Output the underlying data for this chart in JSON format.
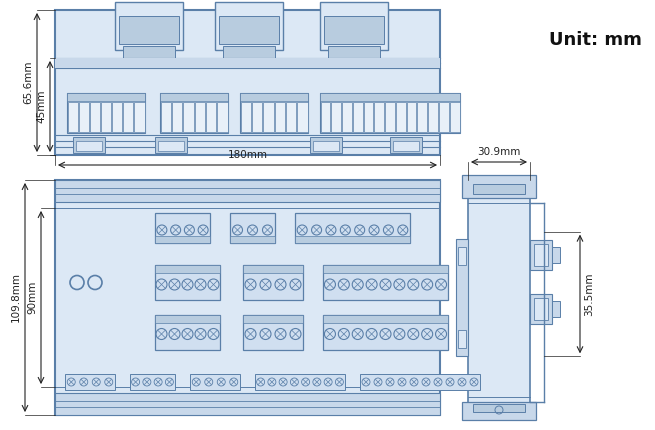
{
  "unit_text": "Unit: mm",
  "bg_color": "#ffffff",
  "line_color": "#5a7fa8",
  "fill_color": "#dce8f5",
  "fill_dark": "#b8ccdf",
  "dim_color": "#222222",
  "dim_65_6": "65.6mm",
  "dim_45": "45mm",
  "dim_180": "180mm",
  "dim_109_8": "109.8mm",
  "dim_90": "90mm",
  "dim_30_9": "30.9mm",
  "dim_35_5": "35.5mm"
}
